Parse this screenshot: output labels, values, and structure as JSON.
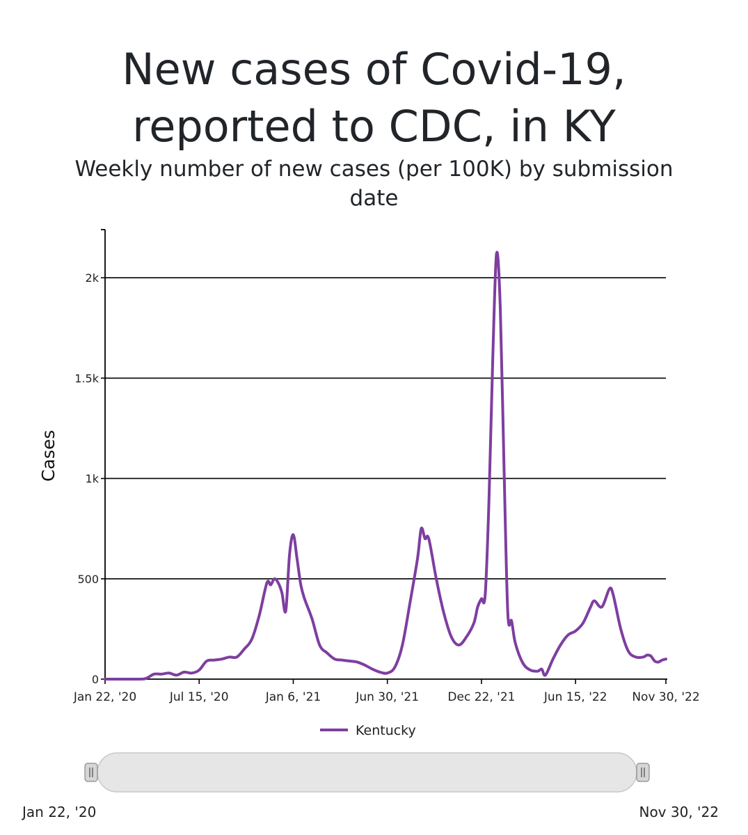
{
  "title_line1": "New cases of Covid-19,",
  "title_line2": "reported to CDC, in KY",
  "subtitle_line1": "Weekly number of new cases (per 100K) by submission",
  "subtitle_line2": "date",
  "range_selector": {
    "start_label": "Jan 22, '20",
    "end_label": "Nov 30, '22"
  },
  "colors": {
    "series": "#7e3ea0",
    "grid": "#000000",
    "axis": "#000000"
  },
  "chart_data": {
    "type": "line",
    "title": "New cases of Covid-19, reported to CDC, in KY",
    "subtitle": "Weekly number of new cases (per 100K) by submission date",
    "xlabel": "",
    "ylabel": "Cases",
    "x_range": [
      "2020-01-22",
      "2022-11-30"
    ],
    "ylim": [
      0,
      2240
    ],
    "x_ticks": [
      {
        "date": "2020-01-22",
        "label": "Jan 22, '20"
      },
      {
        "date": "2020-07-15",
        "label": "Jul 15, '20"
      },
      {
        "date": "2021-01-06",
        "label": "Jan 6, '21"
      },
      {
        "date": "2021-06-30",
        "label": "Jun 30, '21"
      },
      {
        "date": "2021-12-22",
        "label": "Dec 22, '21"
      },
      {
        "date": "2022-06-15",
        "label": "Jun 15, '22"
      },
      {
        "date": "2022-11-30",
        "label": "Nov 30, '22"
      }
    ],
    "y_ticks": [
      {
        "value": 0,
        "label": "0"
      },
      {
        "value": 500,
        "label": "500"
      },
      {
        "value": 1000,
        "label": "1k"
      },
      {
        "value": 1500,
        "label": "1.5k"
      },
      {
        "value": 2000,
        "label": "2k"
      }
    ],
    "grid": true,
    "legend_position": "bottom",
    "series": [
      {
        "name": "Kentucky",
        "color": "#7e3ea0",
        "points": [
          [
            "2020-01-22",
            0
          ],
          [
            "2020-03-25",
            0
          ],
          [
            "2020-04-08",
            5
          ],
          [
            "2020-04-22",
            25
          ],
          [
            "2020-05-06",
            25
          ],
          [
            "2020-05-20",
            30
          ],
          [
            "2020-06-03",
            20
          ],
          [
            "2020-06-17",
            35
          ],
          [
            "2020-07-01",
            30
          ],
          [
            "2020-07-15",
            45
          ],
          [
            "2020-07-29",
            90
          ],
          [
            "2020-08-12",
            95
          ],
          [
            "2020-08-26",
            100
          ],
          [
            "2020-09-09",
            110
          ],
          [
            "2020-09-23",
            110
          ],
          [
            "2020-10-07",
            150
          ],
          [
            "2020-10-21",
            200
          ],
          [
            "2020-11-04",
            320
          ],
          [
            "2020-11-18",
            480
          ],
          [
            "2020-11-25",
            470
          ],
          [
            "2020-12-02",
            500
          ],
          [
            "2020-12-09",
            480
          ],
          [
            "2020-12-16",
            430
          ],
          [
            "2020-12-23",
            340
          ],
          [
            "2020-12-30",
            620
          ],
          [
            "2021-01-06",
            720
          ],
          [
            "2021-01-13",
            600
          ],
          [
            "2021-01-20",
            470
          ],
          [
            "2021-01-27",
            400
          ],
          [
            "2021-02-10",
            300
          ],
          [
            "2021-02-24",
            170
          ],
          [
            "2021-03-10",
            130
          ],
          [
            "2021-03-24",
            100
          ],
          [
            "2021-04-07",
            95
          ],
          [
            "2021-04-21",
            90
          ],
          [
            "2021-05-05",
            85
          ],
          [
            "2021-05-19",
            70
          ],
          [
            "2021-06-02",
            50
          ],
          [
            "2021-06-16",
            35
          ],
          [
            "2021-06-30",
            30
          ],
          [
            "2021-07-14",
            60
          ],
          [
            "2021-07-28",
            170
          ],
          [
            "2021-08-11",
            380
          ],
          [
            "2021-08-25",
            600
          ],
          [
            "2021-09-01",
            750
          ],
          [
            "2021-09-08",
            700
          ],
          [
            "2021-09-15",
            700
          ],
          [
            "2021-09-29",
            500
          ],
          [
            "2021-10-13",
            330
          ],
          [
            "2021-10-27",
            210
          ],
          [
            "2021-11-10",
            170
          ],
          [
            "2021-11-24",
            210
          ],
          [
            "2021-12-08",
            280
          ],
          [
            "2021-12-15",
            360
          ],
          [
            "2021-12-22",
            400
          ],
          [
            "2021-12-29",
            420
          ],
          [
            "2022-01-05",
            900
          ],
          [
            "2022-01-12",
            1600
          ],
          [
            "2022-01-19",
            2120
          ],
          [
            "2022-01-26",
            1850
          ],
          [
            "2022-02-02",
            1050
          ],
          [
            "2022-02-09",
            330
          ],
          [
            "2022-02-16",
            290
          ],
          [
            "2022-02-23",
            180
          ],
          [
            "2022-03-09",
            80
          ],
          [
            "2022-03-23",
            45
          ],
          [
            "2022-04-06",
            40
          ],
          [
            "2022-04-13",
            50
          ],
          [
            "2022-04-20",
            20
          ],
          [
            "2022-05-04",
            100
          ],
          [
            "2022-05-18",
            170
          ],
          [
            "2022-06-01",
            220
          ],
          [
            "2022-06-15",
            240
          ],
          [
            "2022-06-29",
            280
          ],
          [
            "2022-07-13",
            360
          ],
          [
            "2022-07-20",
            390
          ],
          [
            "2022-08-03",
            360
          ],
          [
            "2022-08-17",
            450
          ],
          [
            "2022-08-24",
            420
          ],
          [
            "2022-09-07",
            250
          ],
          [
            "2022-09-21",
            140
          ],
          [
            "2022-10-05",
            110
          ],
          [
            "2022-10-19",
            110
          ],
          [
            "2022-10-26",
            120
          ],
          [
            "2022-11-02",
            115
          ],
          [
            "2022-11-09",
            90
          ],
          [
            "2022-11-16",
            85
          ],
          [
            "2022-11-23",
            95
          ],
          [
            "2022-11-30",
            100
          ]
        ]
      }
    ]
  }
}
